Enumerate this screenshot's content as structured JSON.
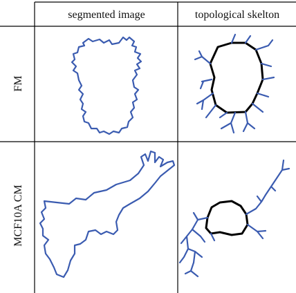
{
  "table": {
    "header": [
      "segmented image",
      "topological skelton"
    ],
    "rows": [
      [
        "FM"
      ],
      [
        "MCF10A CM"
      ]
    ]
  }
}
